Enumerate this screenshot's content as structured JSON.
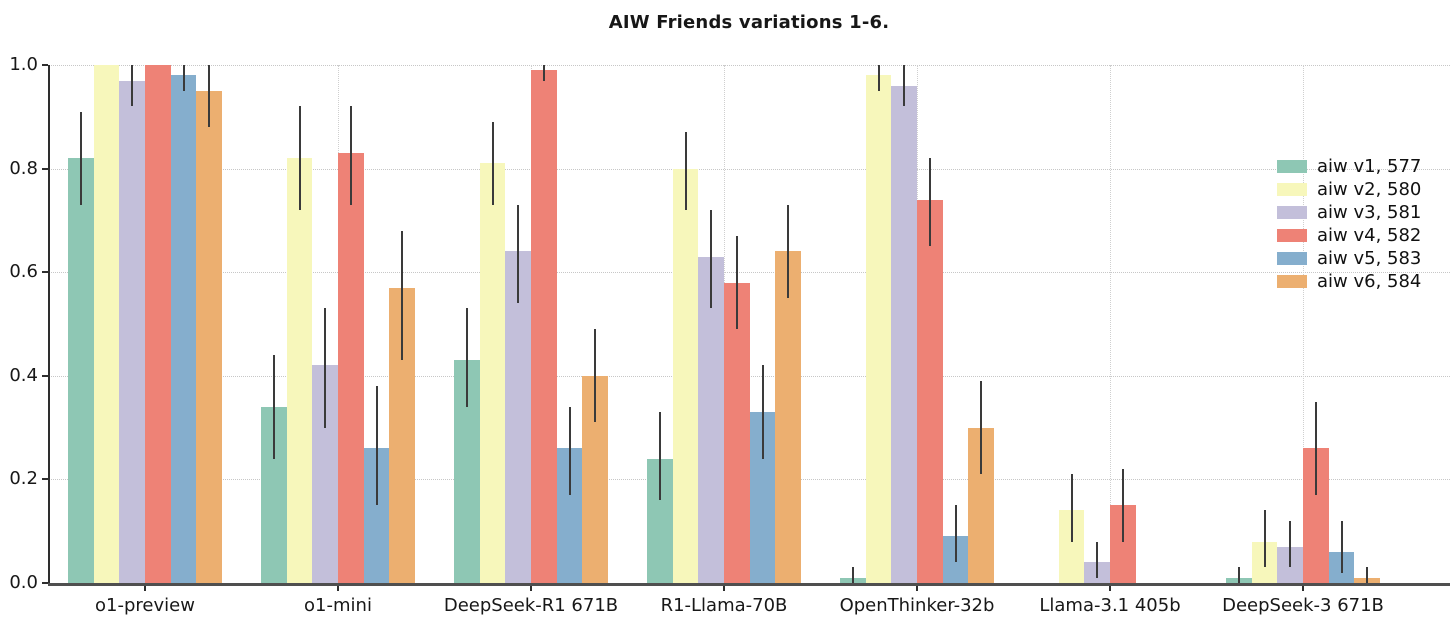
{
  "chart_data": {
    "type": "bar",
    "title": "AIW Friends variations 1-6.",
    "xlabel": "",
    "ylabel": "",
    "ylim": [
      0.0,
      1.0
    ],
    "grid": "both-dotted",
    "legend_position": "upper-right-inside",
    "yticks": {
      "values": [
        0.0,
        0.2,
        0.4,
        0.6,
        0.8,
        1.0
      ],
      "labels": [
        "0.0",
        "0.2",
        "0.4",
        "0.6",
        "0.8",
        "1.0"
      ]
    },
    "categories": [
      "o1-preview",
      "o1-mini",
      "DeepSeek-R1 671B",
      "R1-Llama-70B",
      "OpenThinker-32b",
      "Llama-3.1 405b",
      "DeepSeek-3 671B"
    ],
    "series": [
      {
        "name": "aiw v1, 577",
        "color": "#8ec7b4",
        "values": [
          0.82,
          0.34,
          0.43,
          0.24,
          0.01,
          0.0,
          0.01
        ],
        "err_low": [
          0.73,
          0.24,
          0.34,
          0.16,
          0.0,
          null,
          0.0
        ],
        "err_high": [
          0.91,
          0.44,
          0.53,
          0.33,
          0.03,
          null,
          0.03
        ]
      },
      {
        "name": "aiw v2, 580",
        "color": "#f7f7bb",
        "values": [
          1.0,
          0.82,
          0.81,
          0.8,
          0.98,
          0.14,
          0.08
        ],
        "err_low": [
          null,
          0.72,
          0.73,
          0.72,
          0.95,
          0.08,
          0.03
        ],
        "err_high": [
          null,
          0.92,
          0.89,
          0.87,
          1.0,
          0.21,
          0.14
        ]
      },
      {
        "name": "aiw v3, 581",
        "color": "#c3bfda",
        "values": [
          0.97,
          0.42,
          0.64,
          0.63,
          0.96,
          0.04,
          0.07
        ],
        "err_low": [
          0.92,
          0.3,
          0.54,
          0.53,
          0.92,
          0.01,
          0.03
        ],
        "err_high": [
          1.0,
          0.53,
          0.73,
          0.72,
          1.0,
          0.08,
          0.12
        ]
      },
      {
        "name": "aiw v4, 582",
        "color": "#ee8276",
        "values": [
          1.0,
          0.83,
          0.99,
          0.58,
          0.74,
          0.15,
          0.26
        ],
        "err_low": [
          null,
          0.73,
          0.97,
          0.49,
          0.65,
          0.08,
          0.17
        ],
        "err_high": [
          null,
          0.92,
          1.0,
          0.67,
          0.82,
          0.22,
          0.35
        ]
      },
      {
        "name": "aiw v5, 583",
        "color": "#85aecd",
        "values": [
          0.98,
          0.26,
          0.26,
          0.33,
          0.09,
          0.0,
          0.06
        ],
        "err_low": [
          0.95,
          0.15,
          0.17,
          0.24,
          0.04,
          null,
          0.02
        ],
        "err_high": [
          1.0,
          0.38,
          0.34,
          0.42,
          0.15,
          null,
          0.12
        ]
      },
      {
        "name": "aiw v6, 584",
        "color": "#ecaf70",
        "values": [
          0.95,
          0.57,
          0.4,
          0.64,
          0.3,
          0.0,
          0.01
        ],
        "err_low": [
          0.88,
          0.43,
          0.31,
          0.55,
          0.21,
          null,
          0.0
        ],
        "err_high": [
          1.0,
          0.68,
          0.49,
          0.73,
          0.39,
          null,
          0.03
        ]
      }
    ],
    "colors": {
      "errorbar": "#3a3a3a",
      "axis": "#4f4f4f",
      "grid": "#c7c7c7",
      "text": "#181818"
    }
  }
}
